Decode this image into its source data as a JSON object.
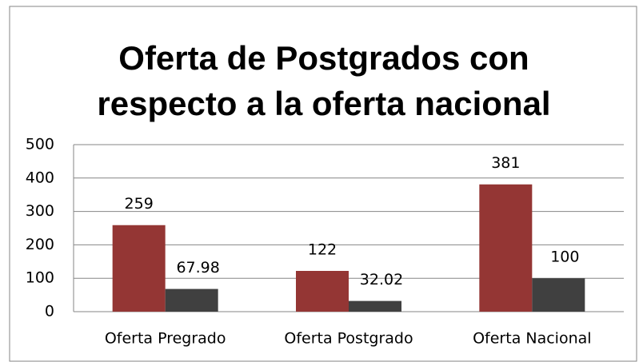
{
  "chart_data": {
    "type": "bar",
    "title": "Oferta de Postgrados con respecto a la oferta nacional",
    "categories": [
      "Oferta Pregrado",
      "Oferta Postgrado",
      "Oferta Nacional"
    ],
    "series": [
      {
        "color": "#943634",
        "values": [
          259,
          122,
          381
        ]
      },
      {
        "color": "#404040",
        "values": [
          67.98,
          32.02,
          100
        ]
      }
    ],
    "ylim": [
      0,
      500
    ],
    "yticks": [
      0,
      100,
      200,
      300,
      400,
      500
    ],
    "grid": true
  }
}
